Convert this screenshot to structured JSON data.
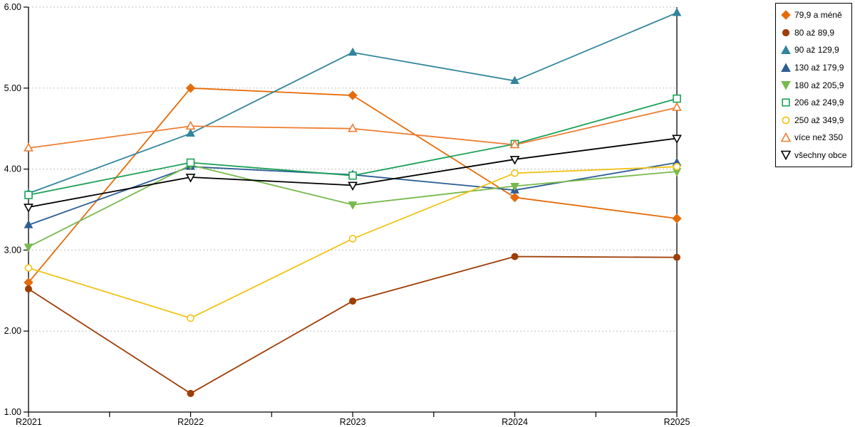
{
  "chart_data": {
    "type": "line",
    "title": "",
    "xlabel": "",
    "ylabel": "",
    "x": [
      "R2021",
      "R2022",
      "R2023",
      "R2024",
      "R2025"
    ],
    "ylim": [
      1,
      6
    ],
    "ytick_labels": [
      "1.00",
      "2.00",
      "3.00",
      "4.00",
      "5.00",
      "6.00"
    ],
    "grid": "horizontal-dotted",
    "grid_color": "#bfbfbf",
    "axis_color": "#000000",
    "legend_position": "right-outside",
    "series": [
      {
        "name": "79,9 a méně",
        "color": "#e46c0a",
        "marker": "diamond",
        "filled": true,
        "values": [
          2.6,
          5.0,
          4.91,
          3.65,
          3.39
        ]
      },
      {
        "name": "80 až 89,9",
        "color": "#9e3d06",
        "marker": "circle",
        "filled": true,
        "values": [
          2.52,
          1.23,
          2.37,
          2.92,
          2.91
        ]
      },
      {
        "name": "90 až 129,9",
        "color": "#31859c",
        "marker": "triangle-up",
        "filled": true,
        "values": [
          3.7,
          4.44,
          5.44,
          5.09,
          5.93
        ]
      },
      {
        "name": "130 až 179,9",
        "color": "#2c5e93",
        "marker": "triangle-up",
        "filled": true,
        "values": [
          3.31,
          4.03,
          3.93,
          3.74,
          4.08
        ]
      },
      {
        "name": "180 až 205,9",
        "color": "#77b94d",
        "marker": "triangle-down",
        "filled": true,
        "values": [
          3.04,
          4.05,
          3.56,
          3.79,
          3.97
        ]
      },
      {
        "name": "206 až 249,9",
        "color": "#1ba158",
        "marker": "square",
        "filled": false,
        "values": [
          3.68,
          4.08,
          3.92,
          4.31,
          4.87
        ]
      },
      {
        "name": "250 až 349,9",
        "color": "#f0c316",
        "marker": "circle",
        "filled": false,
        "values": [
          2.78,
          2.16,
          3.14,
          3.95,
          4.03
        ]
      },
      {
        "name": "více než 350",
        "color": "#ed7d31",
        "marker": "triangle-up",
        "filled": false,
        "values": [
          4.26,
          4.53,
          4.5,
          4.3,
          4.76
        ]
      },
      {
        "name": "všechny obce",
        "color": "#000000",
        "marker": "triangle-down",
        "filled": false,
        "values": [
          3.53,
          3.9,
          3.8,
          4.12,
          4.38
        ]
      }
    ]
  }
}
